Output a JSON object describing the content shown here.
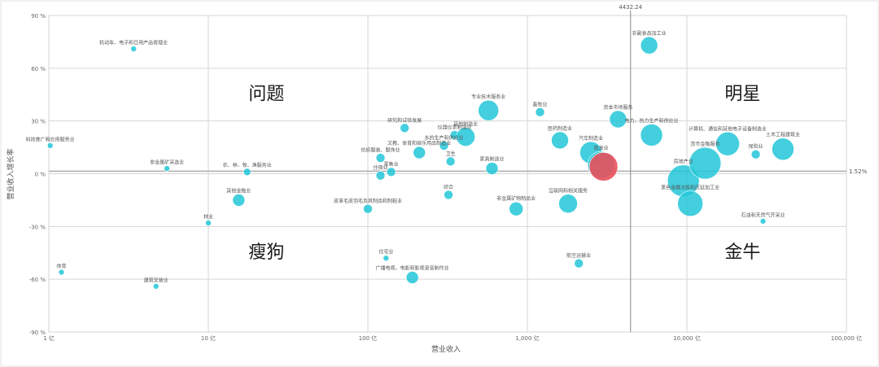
{
  "chart_data": {
    "type": "scatter",
    "xlabel": "营业收入",
    "ylabel": "营业收入增长率",
    "x_scale": "log",
    "xlim": [
      1,
      100000
    ],
    "ylim": [
      -90,
      90
    ],
    "x_ticks": [
      {
        "value": 1,
        "label": "1 亿"
      },
      {
        "value": 10,
        "label": "10 亿"
      },
      {
        "value": 100,
        "label": "100 亿"
      },
      {
        "value": 1000,
        "label": "1,000 亿"
      },
      {
        "value": 10000,
        "label": "10,000 亿"
      },
      {
        "value": 100000,
        "label": "100,000 亿"
      }
    ],
    "y_ticks": [
      {
        "value": 90,
        "label": "90 %"
      },
      {
        "value": 60,
        "label": "60 %"
      },
      {
        "value": 30,
        "label": "30 %"
      },
      {
        "value": 0,
        "label": "0 %"
      },
      {
        "value": -30,
        "label": "-30 %"
      },
      {
        "value": -60,
        "label": "-60 %"
      },
      {
        "value": -90,
        "label": "-90 %"
      }
    ],
    "reference_lines": {
      "x": {
        "value": 4432.24,
        "label": "4432.24"
      },
      "y": {
        "value": 1.52,
        "label": "1.52%"
      }
    },
    "quadrants": {
      "top_left": "问题",
      "top_right": "明星",
      "bottom_left": "瘦狗",
      "bottom_right": "金牛"
    },
    "colors": {
      "bubble": "#22c7d8",
      "highlight": "#e8505b",
      "grid": "#d6d6d6",
      "reference": "#888888"
    },
    "points": [
      {
        "label": "机动车、电子和日用产品修理业",
        "x": 3.4,
        "y": 71,
        "size": 2
      },
      {
        "label": "科技推广和应用服务业",
        "x": 1.02,
        "y": 16,
        "size": 2
      },
      {
        "label": "非金属矿采选业",
        "x": 5.5,
        "y": 3,
        "size": 2
      },
      {
        "label": "农、林、牧、渔服务业",
        "x": 17.5,
        "y": 1,
        "size": 3
      },
      {
        "label": "其他金融业",
        "x": 15.5,
        "y": -15,
        "size": 6
      },
      {
        "label": "林业",
        "x": 10,
        "y": -28,
        "size": 2
      },
      {
        "label": "体育",
        "x": 1.2,
        "y": -56,
        "size": 2
      },
      {
        "label": "建筑安装业",
        "x": 4.7,
        "y": -64,
        "size": 2
      },
      {
        "label": "研究和试验发展",
        "x": 170,
        "y": 26,
        "size": 4
      },
      {
        "label": "仪器仪表制造业",
        "x": 350,
        "y": 22,
        "size": 4
      },
      {
        "label": "文教、体育和娱乐用品制造业",
        "x": 210,
        "y": 12,
        "size": 6
      },
      {
        "label": "水的生产和供应业",
        "x": 300,
        "y": 16,
        "size": 4
      },
      {
        "label": "纺织服装、服饰业",
        "x": 120,
        "y": 9,
        "size": 4
      },
      {
        "label": "卫生",
        "x": 330,
        "y": 7,
        "size": 4
      },
      {
        "label": "住宿业",
        "x": 120,
        "y": -1,
        "size": 4
      },
      {
        "label": "零售业",
        "x": 140,
        "y": 1,
        "size": 4
      },
      {
        "label": "皮革毛皮羽毛及其制品和制鞋业",
        "x": 100,
        "y": -20,
        "size": 4
      },
      {
        "label": "综合",
        "x": 320,
        "y": -12,
        "size": 4
      },
      {
        "label": "专业技术服务业",
        "x": 570,
        "y": 36,
        "size": 11
      },
      {
        "label": "畜牧业",
        "x": 1200,
        "y": 35,
        "size": 4
      },
      {
        "label": "其他制造业",
        "x": 410,
        "y": 21,
        "size": 10
      },
      {
        "label": "家具制造业",
        "x": 600,
        "y": 3,
        "size": 6
      },
      {
        "label": "互联网和相关服务",
        "x": 1800,
        "y": -17,
        "size": 10
      },
      {
        "label": "非金属矿物制品业",
        "x": 850,
        "y": -20,
        "size": 7
      },
      {
        "label": "住宅业",
        "x": 130,
        "y": -48,
        "size": 2
      },
      {
        "label": "广播电视、电影和影视录音制作业",
        "x": 190,
        "y": -59,
        "size": 6
      },
      {
        "label": "航空运输业",
        "x": 2100,
        "y": -51,
        "size": 4
      },
      {
        "label": "资本市场服务",
        "x": 3700,
        "y": 31,
        "size": 9
      },
      {
        "label": "汽车制造业",
        "x": 2500,
        "y": 12,
        "size": 12
      },
      {
        "label": "医药制造业",
        "x": 1600,
        "y": 19,
        "size": 9
      },
      {
        "label": "批发业",
        "x": 2900,
        "y": 5,
        "size": 15
      },
      {
        "label": "农副食品加工业",
        "x": 5800,
        "y": 73,
        "size": 9
      },
      {
        "label": "电力、热力生产和供应业",
        "x": 6000,
        "y": 22,
        "size": 12
      },
      {
        "label": "计算机、通信和其他电子设备制造业",
        "x": 18000,
        "y": 17,
        "size": 13
      },
      {
        "label": "土木工程建筑业",
        "x": 40000,
        "y": 14,
        "size": 12
      },
      {
        "label": "房地产业",
        "x": 9500,
        "y": -4,
        "size": 18
      },
      {
        "label": "货币金融服务",
        "x": 13000,
        "y": 6,
        "size": 18
      },
      {
        "label": "保险业",
        "x": 27000,
        "y": 11,
        "size": 4
      },
      {
        "label": "石油和天然气开采业",
        "x": 30000,
        "y": -27,
        "size": 2
      },
      {
        "label": "黑色金属冶炼和压延加工业",
        "x": 10500,
        "y": -17,
        "size": 14
      }
    ],
    "highlight": {
      "x": 3000,
      "y": 4,
      "size": 16
    }
  }
}
